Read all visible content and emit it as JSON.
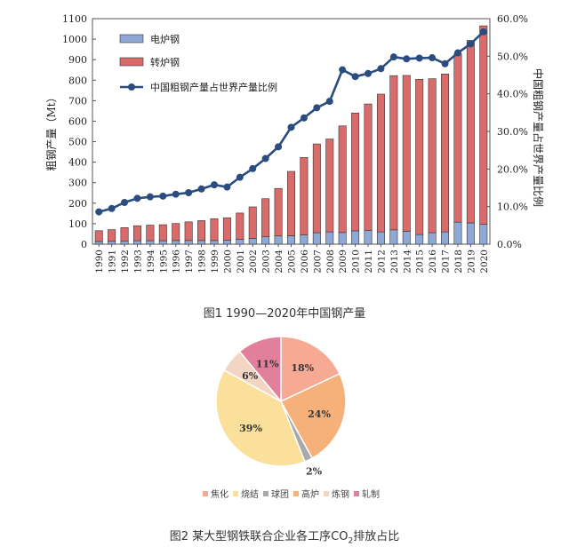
{
  "figure1": {
    "caption": "图1 1990—2020年中国钢产量",
    "chart_data": {
      "type": "bar",
      "stacked": true,
      "categories": [
        "1990",
        "1991",
        "1992",
        "1993",
        "1994",
        "1995",
        "1996",
        "1997",
        "1998",
        "1999",
        "2000",
        "2001",
        "2002",
        "2003",
        "2004",
        "2005",
        "2006",
        "2007",
        "2008",
        "2009",
        "2010",
        "2011",
        "2012",
        "2013",
        "2014",
        "2015",
        "2016",
        "2017",
        "2018",
        "2019",
        "2020"
      ],
      "series": [
        {
          "name": "电炉钢",
          "type": "bar",
          "axis": "left",
          "color": "#8fa8d6",
          "values": [
            13,
            14,
            16,
            17,
            17,
            17,
            18,
            18,
            18,
            18,
            19,
            24,
            28,
            36,
            40,
            41,
            45,
            56,
            60,
            57,
            65,
            67,
            60,
            70,
            63,
            47,
            56,
            60,
            108,
            104,
            97
          ]
        },
        {
          "name": "转炉钢",
          "type": "bar",
          "axis": "left",
          "color": "#d96b6b",
          "values": [
            53,
            57,
            65,
            73,
            76,
            78,
            83,
            91,
            97,
            106,
            110,
            128,
            154,
            186,
            232,
            314,
            378,
            433,
            453,
            520,
            575,
            617,
            672,
            752,
            760,
            757,
            751,
            770,
            820,
            890,
            968
          ]
        },
        {
          "name": "中国粗钢产量占世界产量比例",
          "type": "line",
          "axis": "right",
          "color": "#2b4c7e",
          "values": [
            8.6,
            9.5,
            11.1,
            12.2,
            12.6,
            12.8,
            13.3,
            13.7,
            14.7,
            15.8,
            15.2,
            17.8,
            20.1,
            22.8,
            25.9,
            31.1,
            33.6,
            36.3,
            38.0,
            46.4,
            44.6,
            45.4,
            46.7,
            49.8,
            49.3,
            49.5,
            49.6,
            48.0,
            50.9,
            53.3,
            56.5
          ]
        }
      ],
      "ylabel": "粗钢产量（Mt）",
      "y2label": "中国粗钢产量占世界产量比例",
      "ylim": [
        0,
        1100
      ],
      "yticks": [
        0,
        100,
        200,
        300,
        400,
        500,
        600,
        700,
        800,
        900,
        1000,
        1100
      ],
      "y2lim": [
        0,
        60
      ],
      "y2ticks": [
        "0.0%",
        "10.0%",
        "20.0%",
        "30.0%",
        "40.0%",
        "50.0%",
        "60.0%"
      ],
      "legend_position": "top-left",
      "grid": false
    }
  },
  "figure2": {
    "caption_main": "图2 某大型钢铁联合企业各工序CO",
    "caption_sub": "2",
    "caption_tail": "排放占比",
    "chart_data": {
      "type": "pie",
      "categories": [
        "焦化",
        "烧结",
        "球团",
        "高炉",
        "炼钢",
        "轧制"
      ],
      "values": [
        18,
        39,
        2,
        24,
        6,
        11
      ],
      "labels": {
        "焦化": "18%",
        "烧结": "39%",
        "球团": "2%",
        "高炉": "24%",
        "炼钢": "6%",
        "轧制": "11%"
      },
      "slice_order_clockwise_from_top": [
        "焦化",
        "高炉",
        "球团",
        "烧结",
        "炼钢",
        "轧制"
      ],
      "colors": {
        "焦化": "#f6a993",
        "高炉": "#f6b07a",
        "球团": "#a9a9a9",
        "烧结": "#fbe09c",
        "炼钢": "#f2d5c3",
        "轧制": "#e2809b"
      },
      "legend_position": "bottom"
    }
  }
}
